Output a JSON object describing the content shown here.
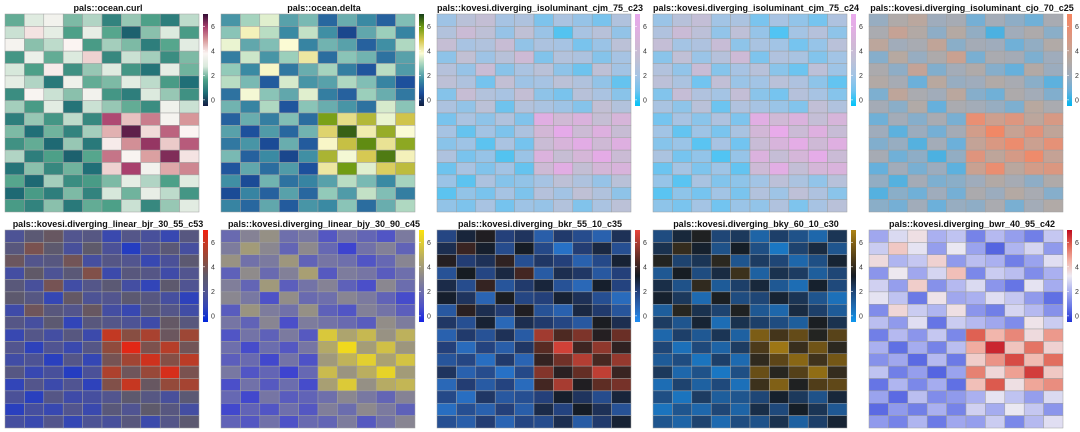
{
  "chart_data": {
    "type": "heatmap",
    "rows": 16,
    "cols": 10,
    "matrix": [
      [
        1.8,
        2.9,
        3.5,
        2.0,
        2.4,
        1.0,
        2.2,
        1.6,
        0.9,
        2.5
      ],
      [
        2.6,
        4.0,
        3.1,
        1.6,
        3.2,
        1.7,
        0.4,
        2.1,
        2.8,
        1.5
      ],
      [
        3.6,
        2.1,
        2.5,
        3.8,
        1.5,
        2.3,
        2.0,
        0.9,
        1.7,
        3.0
      ],
      [
        1.4,
        3.3,
        1.8,
        2.8,
        4.2,
        1.1,
        2.6,
        2.3,
        1.2,
        2.0
      ],
      [
        2.7,
        1.6,
        3.9,
        1.3,
        2.2,
        2.9,
        1.4,
        0.7,
        3.1,
        1.9
      ],
      [
        3.1,
        2.4,
        0.8,
        3.4,
        1.8,
        2.0,
        3.0,
        2.5,
        1.5,
        0.6
      ],
      [
        1.2,
        3.7,
        2.6,
        2.1,
        3.5,
        1.4,
        0.9,
        2.8,
        2.2,
        1.3
      ],
      [
        2.3,
        1.5,
        3.0,
        0.7,
        2.6,
        2.2,
        1.8,
        1.2,
        3.4,
        2.6
      ],
      [
        0.9,
        2.2,
        1.4,
        2.5,
        1.1,
        5.8,
        4.4,
        5.2,
        3.6,
        4.9
      ],
      [
        2.0,
        0.6,
        1.9,
        1.0,
        2.3,
        4.6,
        6.6,
        4.1,
        5.5,
        3.8
      ],
      [
        1.3,
        1.8,
        0.5,
        2.2,
        0.8,
        3.9,
        5.0,
        6.1,
        4.3,
        5.6
      ],
      [
        2.4,
        0.9,
        1.6,
        0.4,
        1.7,
        5.3,
        3.7,
        4.8,
        6.3,
        4.0
      ],
      [
        0.7,
        2.1,
        1.1,
        1.9,
        0.6,
        4.2,
        5.9,
        3.5,
        4.7,
        5.1
      ],
      [
        1.7,
        0.5,
        2.3,
        1.2,
        1.5,
        2.0,
        3.1,
        2.4,
        1.6,
        2.9
      ],
      [
        0.5,
        1.5,
        0.9,
        2.0,
        1.0,
        2.7,
        1.9,
        3.2,
        2.5,
        1.4
      ],
      [
        1.5,
        1.0,
        2.1,
        0.8,
        1.8,
        1.6,
        2.6,
        1.1,
        2.2,
        3.0
      ]
    ],
    "scale_ticks": [
      0,
      2,
      4,
      6
    ],
    "value_range": [
      -0.5,
      7
    ],
    "panels": [
      {
        "title": "pals::ocean.curl",
        "colors": [
          "#151d44",
          "#1f6e76",
          "#4fa289",
          "#d9e9dc",
          "#fbf5f3",
          "#d99b9c",
          "#a83e6c",
          "#340d35"
        ]
      },
      {
        "title": "pals::ocean.delta",
        "colors": [
          "#112040",
          "#1c4e9c",
          "#3b8ca3",
          "#93cbb9",
          "#fcfcd6",
          "#d4c64c",
          "#6e9b10",
          "#163e1a"
        ]
      },
      {
        "title": "pals::kovesi.diverging_isoluminant_cjm_75_c23",
        "colors": [
          "#00c2f6",
          "#73c3ee",
          "#a6c3e3",
          "#c0c0d4",
          "#d1b8d5",
          "#e0aee2",
          "#e8a8ec"
        ]
      },
      {
        "title": "pals::kovesi.diverging_isoluminant_cjm_75_c24",
        "colors": [
          "#00c4f9",
          "#70c4f0",
          "#a2c4e5",
          "#bfc0d6",
          "#d1b8d6",
          "#e1aee3",
          "#ebaaee"
        ]
      },
      {
        "title": "pals::kovesi.diverging_isoluminant_cjo_70_c25",
        "colors": [
          "#00b5f0",
          "#6ab0db",
          "#9facbc",
          "#b5a9a2",
          "#cf9e8c",
          "#e88f74",
          "#f5855f"
        ]
      },
      {
        "title": "pals::kovesi.diverging_linear_bjr_30_55_c53",
        "colors": [
          "#0026dc",
          "#3446b6",
          "#52558f",
          "#5e5a6a",
          "#8c4d3f",
          "#c03a24",
          "#f21f0f"
        ]
      },
      {
        "title": "pals::kovesi.diverging_linear_bjy_30_90_c45",
        "colors": [
          "#1624e2",
          "#4d51c8",
          "#6e6fac",
          "#8e8a8c",
          "#b0a66b",
          "#d8c73d",
          "#fbe20e"
        ]
      },
      {
        "title": "pals::kovesi.diverging_bkr_55_10_c35",
        "colors": [
          "#1f8ef3",
          "#2a66b5",
          "#24407a",
          "#141b22",
          "#522a22",
          "#9e3b30",
          "#e9443a"
        ]
      },
      {
        "title": "pals::kovesi.diverging_bky_60_10_c30",
        "colors": [
          "#0f96ed",
          "#1e6bb2",
          "#1f4676",
          "#151c24",
          "#48371a",
          "#7a5b16",
          "#ad8314"
        ]
      },
      {
        "title": "pals::kovesi.diverging_bwr_40_95_c42",
        "colors": [
          "#2233d5",
          "#6978e6",
          "#aab0f0",
          "#edeaf2",
          "#f2b2a6",
          "#e06555",
          "#c0091d"
        ]
      }
    ]
  }
}
